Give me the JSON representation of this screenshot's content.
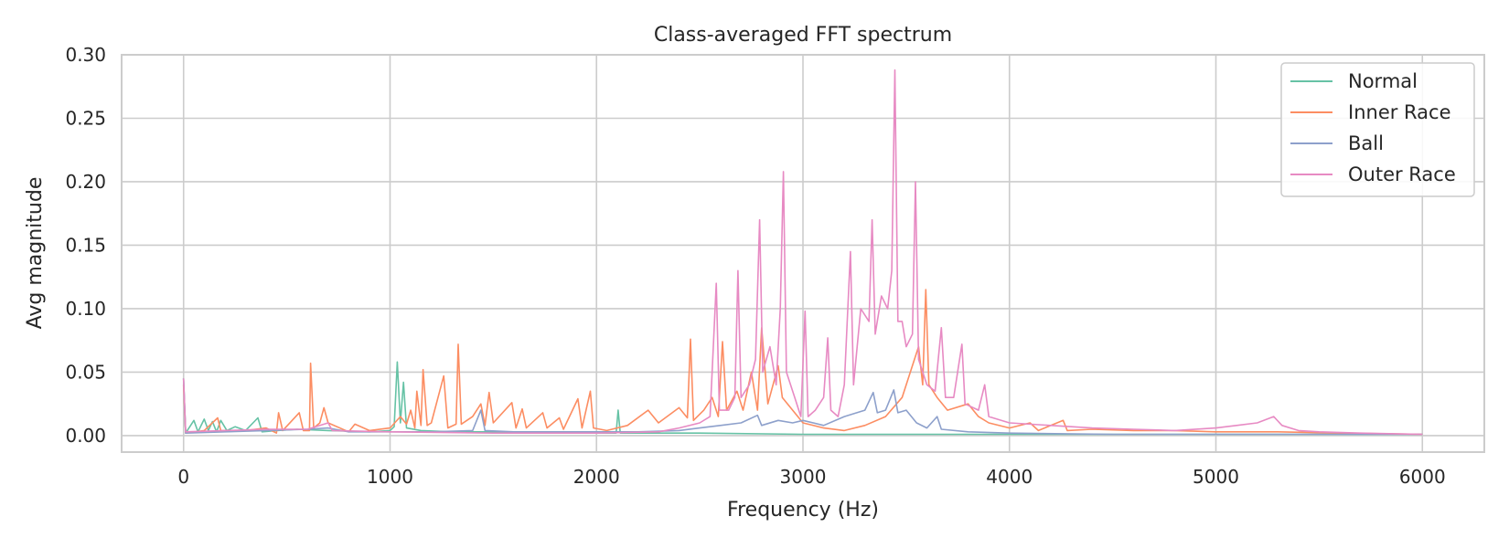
{
  "chart_data": {
    "type": "line",
    "title": "Class-averaged FFT spectrum",
    "xlabel": "Frequency (Hz)",
    "ylabel": "Avg magnitude",
    "xlim": [
      -300,
      6300
    ],
    "ylim": [
      -0.013,
      0.3
    ],
    "xticks": [
      0,
      1000,
      2000,
      3000,
      4000,
      5000,
      6000
    ],
    "yticks": [
      0.0,
      0.05,
      0.1,
      0.15,
      0.2,
      0.25,
      0.3
    ],
    "xtick_labels": [
      "0",
      "1000",
      "2000",
      "3000",
      "4000",
      "5000",
      "6000"
    ],
    "ytick_labels": [
      "0.00",
      "0.05",
      "0.10",
      "0.15",
      "0.20",
      "0.25",
      "0.30"
    ],
    "grid": true,
    "legend_position": "top-right",
    "series": [
      {
        "name": "Normal",
        "color": "#66c2a5",
        "points": [
          [
            0,
            0.045
          ],
          [
            10,
            0.002
          ],
          [
            50,
            0.012
          ],
          [
            70,
            0.003
          ],
          [
            100,
            0.013
          ],
          [
            120,
            0.004
          ],
          [
            140,
            0.011
          ],
          [
            160,
            0.003
          ],
          [
            180,
            0.012
          ],
          [
            210,
            0.004
          ],
          [
            250,
            0.007
          ],
          [
            300,
            0.004
          ],
          [
            360,
            0.014
          ],
          [
            380,
            0.003
          ],
          [
            450,
            0.004
          ],
          [
            550,
            0.005
          ],
          [
            700,
            0.004
          ],
          [
            900,
            0.003
          ],
          [
            1000,
            0.004
          ],
          [
            1020,
            0.007
          ],
          [
            1035,
            0.058
          ],
          [
            1050,
            0.01
          ],
          [
            1065,
            0.042
          ],
          [
            1080,
            0.006
          ],
          [
            1150,
            0.004
          ],
          [
            1300,
            0.003
          ],
          [
            1500,
            0.003
          ],
          [
            1800,
            0.002
          ],
          [
            2000,
            0.002
          ],
          [
            2095,
            0.002
          ],
          [
            2105,
            0.02
          ],
          [
            2115,
            0.002
          ],
          [
            2500,
            0.002
          ],
          [
            3000,
            0.001
          ],
          [
            3500,
            0.001
          ],
          [
            4000,
            0.001
          ],
          [
            5000,
            0.001
          ],
          [
            6000,
            0.001
          ]
        ]
      },
      {
        "name": "Inner Race",
        "color": "#fc8d62",
        "points": [
          [
            0,
            0.04
          ],
          [
            10,
            0.002
          ],
          [
            100,
            0.004
          ],
          [
            165,
            0.014
          ],
          [
            180,
            0.004
          ],
          [
            300,
            0.004
          ],
          [
            400,
            0.006
          ],
          [
            450,
            0.002
          ],
          [
            460,
            0.018
          ],
          [
            480,
            0.004
          ],
          [
            560,
            0.018
          ],
          [
            580,
            0.004
          ],
          [
            610,
            0.004
          ],
          [
            615,
            0.057
          ],
          [
            630,
            0.006
          ],
          [
            660,
            0.01
          ],
          [
            680,
            0.022
          ],
          [
            700,
            0.01
          ],
          [
            800,
            0.003
          ],
          [
            830,
            0.009
          ],
          [
            900,
            0.004
          ],
          [
            1000,
            0.006
          ],
          [
            1050,
            0.015
          ],
          [
            1080,
            0.009
          ],
          [
            1100,
            0.02
          ],
          [
            1120,
            0.006
          ],
          [
            1130,
            0.035
          ],
          [
            1150,
            0.008
          ],
          [
            1160,
            0.052
          ],
          [
            1180,
            0.008
          ],
          [
            1200,
            0.01
          ],
          [
            1260,
            0.047
          ],
          [
            1280,
            0.006
          ],
          [
            1320,
            0.009
          ],
          [
            1330,
            0.072
          ],
          [
            1345,
            0.009
          ],
          [
            1400,
            0.015
          ],
          [
            1440,
            0.025
          ],
          [
            1460,
            0.008
          ],
          [
            1480,
            0.034
          ],
          [
            1500,
            0.01
          ],
          [
            1590,
            0.026
          ],
          [
            1610,
            0.006
          ],
          [
            1640,
            0.021
          ],
          [
            1660,
            0.006
          ],
          [
            1740,
            0.018
          ],
          [
            1760,
            0.006
          ],
          [
            1820,
            0.014
          ],
          [
            1840,
            0.005
          ],
          [
            1910,
            0.029
          ],
          [
            1930,
            0.006
          ],
          [
            1970,
            0.035
          ],
          [
            1985,
            0.006
          ],
          [
            2050,
            0.004
          ],
          [
            2150,
            0.008
          ],
          [
            2250,
            0.02
          ],
          [
            2300,
            0.01
          ],
          [
            2400,
            0.022
          ],
          [
            2440,
            0.014
          ],
          [
            2455,
            0.076
          ],
          [
            2470,
            0.012
          ],
          [
            2520,
            0.02
          ],
          [
            2560,
            0.03
          ],
          [
            2590,
            0.015
          ],
          [
            2610,
            0.074
          ],
          [
            2630,
            0.02
          ],
          [
            2680,
            0.035
          ],
          [
            2710,
            0.02
          ],
          [
            2750,
            0.05
          ],
          [
            2780,
            0.02
          ],
          [
            2800,
            0.085
          ],
          [
            2830,
            0.025
          ],
          [
            2880,
            0.055
          ],
          [
            2900,
            0.03
          ],
          [
            2950,
            0.02
          ],
          [
            3000,
            0.01
          ],
          [
            3100,
            0.006
          ],
          [
            3200,
            0.004
          ],
          [
            3300,
            0.008
          ],
          [
            3400,
            0.015
          ],
          [
            3480,
            0.03
          ],
          [
            3520,
            0.05
          ],
          [
            3560,
            0.07
          ],
          [
            3580,
            0.04
          ],
          [
            3595,
            0.115
          ],
          [
            3610,
            0.04
          ],
          [
            3650,
            0.03
          ],
          [
            3700,
            0.02
          ],
          [
            3800,
            0.025
          ],
          [
            3850,
            0.015
          ],
          [
            3900,
            0.01
          ],
          [
            4000,
            0.006
          ],
          [
            4100,
            0.01
          ],
          [
            4140,
            0.004
          ],
          [
            4260,
            0.012
          ],
          [
            4280,
            0.004
          ],
          [
            4400,
            0.005
          ],
          [
            4600,
            0.004
          ],
          [
            4800,
            0.004
          ],
          [
            5000,
            0.003
          ],
          [
            5300,
            0.003
          ],
          [
            5600,
            0.002
          ],
          [
            6000,
            0.001
          ]
        ]
      },
      {
        "name": "Ball",
        "color": "#8da0cb",
        "points": [
          [
            0,
            0.045
          ],
          [
            10,
            0.002
          ],
          [
            200,
            0.003
          ],
          [
            400,
            0.004
          ],
          [
            600,
            0.005
          ],
          [
            700,
            0.006
          ],
          [
            800,
            0.003
          ],
          [
            1000,
            0.003
          ],
          [
            1200,
            0.003
          ],
          [
            1400,
            0.004
          ],
          [
            1440,
            0.02
          ],
          [
            1460,
            0.004
          ],
          [
            1600,
            0.003
          ],
          [
            1800,
            0.003
          ],
          [
            2000,
            0.003
          ],
          [
            2200,
            0.003
          ],
          [
            2400,
            0.004
          ],
          [
            2500,
            0.006
          ],
          [
            2600,
            0.008
          ],
          [
            2700,
            0.01
          ],
          [
            2780,
            0.016
          ],
          [
            2800,
            0.008
          ],
          [
            2880,
            0.012
          ],
          [
            2950,
            0.01
          ],
          [
            3000,
            0.012
          ],
          [
            3100,
            0.008
          ],
          [
            3200,
            0.015
          ],
          [
            3300,
            0.02
          ],
          [
            3340,
            0.034
          ],
          [
            3360,
            0.018
          ],
          [
            3400,
            0.02
          ],
          [
            3440,
            0.036
          ],
          [
            3460,
            0.018
          ],
          [
            3500,
            0.02
          ],
          [
            3550,
            0.01
          ],
          [
            3600,
            0.006
          ],
          [
            3650,
            0.015
          ],
          [
            3670,
            0.005
          ],
          [
            3800,
            0.003
          ],
          [
            4000,
            0.002
          ],
          [
            4500,
            0.001
          ],
          [
            5000,
            0.001
          ],
          [
            6000,
            0.001
          ]
        ]
      },
      {
        "name": "Outer Race",
        "color": "#e78ac3",
        "points": [
          [
            0,
            0.045
          ],
          [
            10,
            0.003
          ],
          [
            200,
            0.004
          ],
          [
            400,
            0.005
          ],
          [
            600,
            0.005
          ],
          [
            700,
            0.01
          ],
          [
            720,
            0.004
          ],
          [
            1000,
            0.003
          ],
          [
            1500,
            0.002
          ],
          [
            2000,
            0.002
          ],
          [
            2300,
            0.003
          ],
          [
            2400,
            0.006
          ],
          [
            2500,
            0.01
          ],
          [
            2550,
            0.015
          ],
          [
            2580,
            0.12
          ],
          [
            2595,
            0.02
          ],
          [
            2640,
            0.02
          ],
          [
            2670,
            0.03
          ],
          [
            2685,
            0.13
          ],
          [
            2700,
            0.03
          ],
          [
            2740,
            0.04
          ],
          [
            2770,
            0.06
          ],
          [
            2790,
            0.17
          ],
          [
            2805,
            0.05
          ],
          [
            2840,
            0.07
          ],
          [
            2870,
            0.04
          ],
          [
            2890,
            0.1
          ],
          [
            2905,
            0.208
          ],
          [
            2920,
            0.05
          ],
          [
            2960,
            0.03
          ],
          [
            2990,
            0.015
          ],
          [
            3010,
            0.098
          ],
          [
            3025,
            0.015
          ],
          [
            3060,
            0.02
          ],
          [
            3100,
            0.03
          ],
          [
            3120,
            0.077
          ],
          [
            3135,
            0.02
          ],
          [
            3170,
            0.015
          ],
          [
            3200,
            0.04
          ],
          [
            3230,
            0.145
          ],
          [
            3245,
            0.04
          ],
          [
            3280,
            0.1
          ],
          [
            3320,
            0.09
          ],
          [
            3335,
            0.17
          ],
          [
            3350,
            0.08
          ],
          [
            3380,
            0.11
          ],
          [
            3410,
            0.1
          ],
          [
            3430,
            0.13
          ],
          [
            3445,
            0.288
          ],
          [
            3460,
            0.09
          ],
          [
            3480,
            0.09
          ],
          [
            3500,
            0.07
          ],
          [
            3530,
            0.08
          ],
          [
            3545,
            0.2
          ],
          [
            3560,
            0.06
          ],
          [
            3600,
            0.04
          ],
          [
            3640,
            0.035
          ],
          [
            3670,
            0.085
          ],
          [
            3690,
            0.03
          ],
          [
            3730,
            0.03
          ],
          [
            3770,
            0.072
          ],
          [
            3785,
            0.025
          ],
          [
            3850,
            0.02
          ],
          [
            3880,
            0.04
          ],
          [
            3900,
            0.015
          ],
          [
            4000,
            0.01
          ],
          [
            4200,
            0.008
          ],
          [
            4400,
            0.006
          ],
          [
            4600,
            0.005
          ],
          [
            4800,
            0.004
          ],
          [
            5000,
            0.006
          ],
          [
            5100,
            0.008
          ],
          [
            5200,
            0.01
          ],
          [
            5280,
            0.015
          ],
          [
            5320,
            0.008
          ],
          [
            5400,
            0.004
          ],
          [
            5500,
            0.003
          ],
          [
            5700,
            0.002
          ],
          [
            6000,
            0.001
          ]
        ]
      }
    ]
  }
}
